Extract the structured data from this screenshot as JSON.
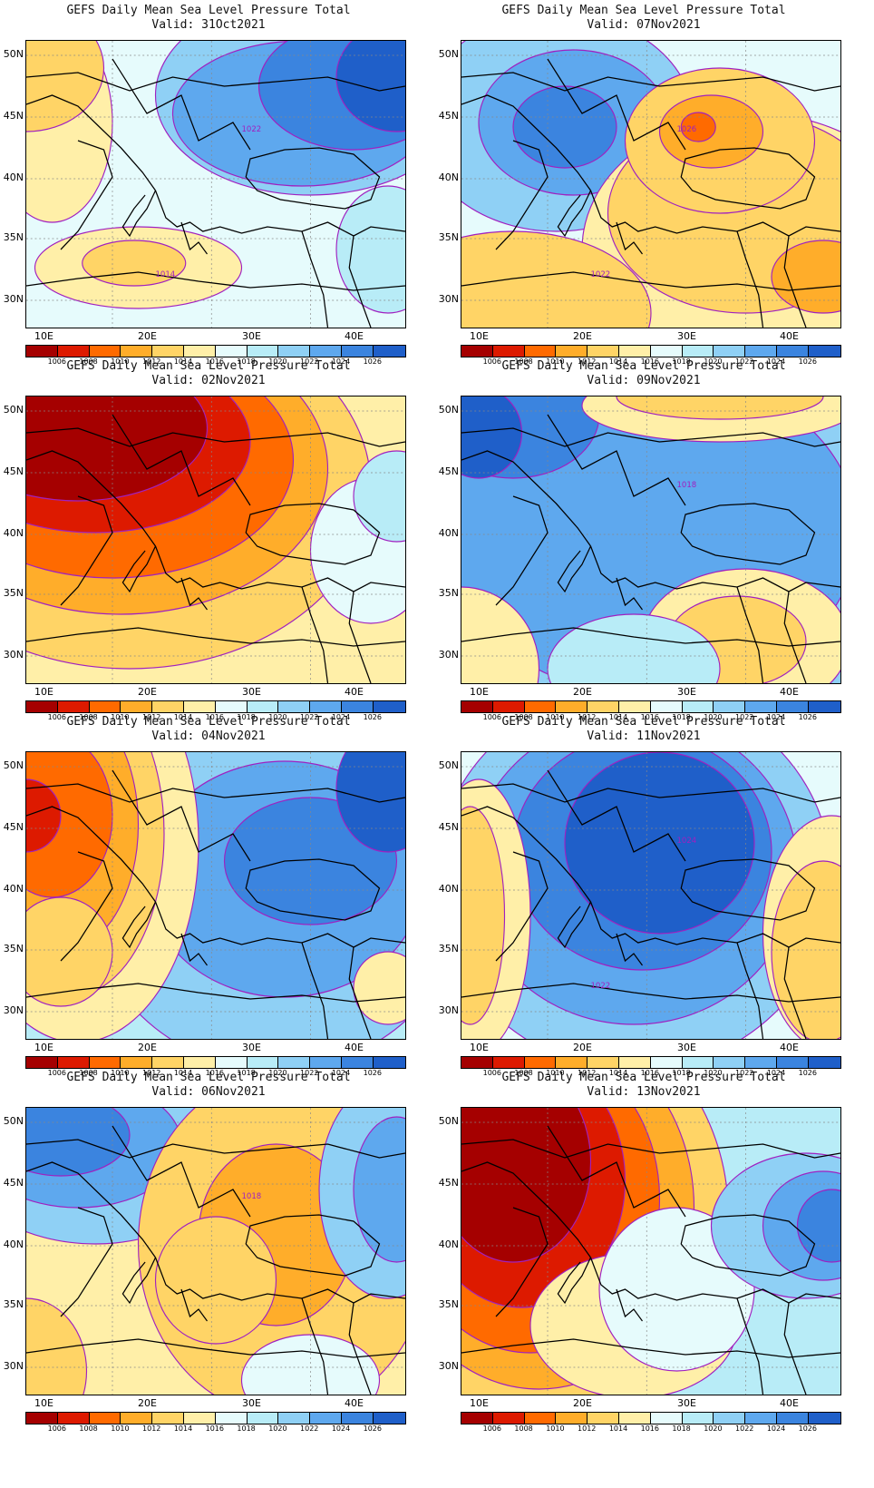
{
  "title": "GEFS Daily Mean Sea Level Pressure Total",
  "lat_labels": [
    "50N",
    "45N",
    "40N",
    "35N",
    "30N"
  ],
  "lon_labels": [
    "10E",
    "20E",
    "30E",
    "40E"
  ],
  "colorbar": {
    "levels": [
      "1006",
      "1008",
      "1010",
      "1012",
      "1014",
      "1016",
      "1018",
      "1020",
      "1022",
      "1024",
      "1026"
    ],
    "colors": [
      "#a50000",
      "#dd1a00",
      "#ff6a00",
      "#ffad2a",
      "#ffd466",
      "#ffefa8",
      "#e6fbfc",
      "#b8ecf7",
      "#8fd0f5",
      "#5ea8ee",
      "#3b84df",
      "#1f5fc9"
    ]
  },
  "panels": [
    {
      "id": "31oct",
      "valid": "Valid: 31Oct2021",
      "contour_labels": [
        "1022",
        "1014"
      ]
    },
    {
      "id": "07nov",
      "valid": "Valid: 07Nov2021",
      "contour_labels": [
        "1026",
        "1022"
      ]
    },
    {
      "id": "02nov",
      "valid": "Valid: 02Nov2021",
      "contour_labels": []
    },
    {
      "id": "09nov",
      "valid": "Valid: 09Nov2021",
      "contour_labels": [
        "1018"
      ]
    },
    {
      "id": "04nov",
      "valid": "Valid: 04Nov2021",
      "contour_labels": []
    },
    {
      "id": "11nov",
      "valid": "Valid: 11Nov2021",
      "contour_labels": [
        "1024",
        "1022"
      ]
    },
    {
      "id": "06nov",
      "valid": "Valid: 06Nov2021",
      "contour_labels": [
        "1018"
      ]
    },
    {
      "id": "13nov",
      "valid": "Valid: 13Nov2021",
      "contour_labels": []
    }
  ]
}
